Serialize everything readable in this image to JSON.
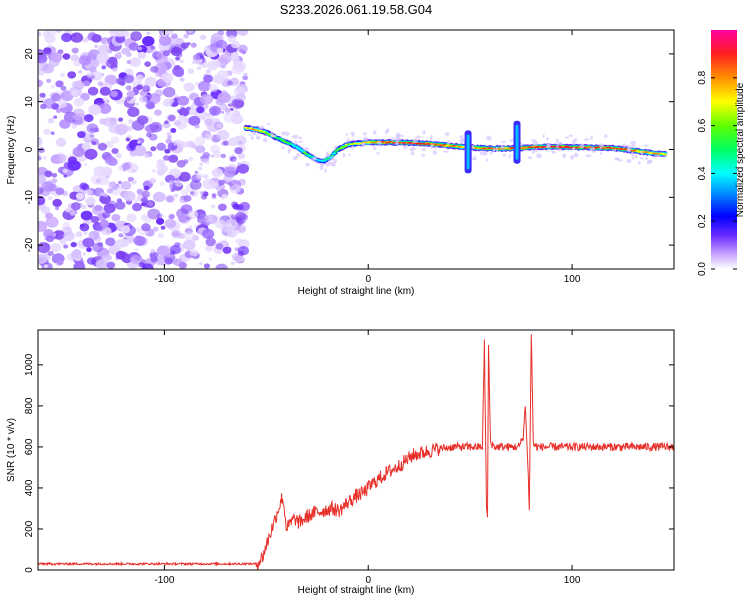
{
  "title": "S233.2026.061.19.58.G04",
  "chart_data": [
    {
      "type": "heatmap",
      "title": "S233.2026.061.19.58.G04",
      "xlabel": "Height of straight line (km)",
      "ylabel": "Frequency (Hz)",
      "xlim": [
        -162,
        150
      ],
      "ylim": [
        -25,
        25
      ],
      "xticks": [
        -100,
        0,
        100
      ],
      "xtick_labels": [
        "-100",
        "0",
        "100"
      ],
      "yticks": [
        -20,
        -10,
        0,
        10,
        20
      ],
      "ytick_labels": [
        "-20",
        "-10",
        "0",
        "10",
        "20"
      ],
      "noise_region_x": [
        -162,
        -60
      ],
      "signal_start_x": -60,
      "signal_track": {
        "x": [
          -60,
          -55,
          -50,
          -45,
          -40,
          -35,
          -30,
          -25,
          -22,
          -18,
          -15,
          -10,
          -5,
          0,
          10,
          20,
          30,
          40,
          48,
          55,
          60,
          66,
          72,
          76,
          80,
          90,
          100,
          110,
          120,
          130,
          140,
          146
        ],
        "freq": [
          4.5,
          4.2,
          3.5,
          2.5,
          1.5,
          0.5,
          -1.0,
          -2.2,
          -2.5,
          -1.5,
          0,
          1.0,
          1.3,
          1.5,
          1.5,
          1.4,
          1.2,
          0.8,
          0.5,
          0.3,
          0.2,
          0.2,
          0.3,
          0.3,
          0.5,
          0.6,
          0.5,
          0.4,
          0.3,
          -0.2,
          -0.8,
          -1.0
        ],
        "amplitude": [
          0.75,
          0.8,
          0.7,
          0.6,
          0.55,
          0.5,
          0.55,
          0.45,
          0.5,
          0.5,
          0.6,
          0.7,
          0.75,
          0.8,
          0.9,
          0.95,
          0.9,
          0.85,
          0.8,
          0.85,
          0.9,
          0.8,
          0.9,
          0.85,
          0.9,
          0.95,
          0.95,
          0.9,
          0.9,
          0.85,
          0.8,
          0.8
        ]
      },
      "vertical_streaks": [
        {
          "x": 49,
          "fmin": -5,
          "fmax": 4
        },
        {
          "x": 73,
          "fmin": -3,
          "fmax": 6
        }
      ],
      "colorbar": {
        "label": "Normalized spectral amplitude",
        "range": [
          0,
          1
        ],
        "ticks": [
          0,
          0.2,
          0.4,
          0.6,
          0.8
        ],
        "tick_labels": [
          "0.0",
          "0.2",
          "0.4",
          "0.6",
          "0.8"
        ]
      }
    },
    {
      "type": "line",
      "xlabel": "Height of straight line (km)",
      "ylabel": "SNR (10 * v/v)",
      "xlim": [
        -162,
        150
      ],
      "ylim": [
        0,
        1170
      ],
      "xticks": [
        -100,
        0,
        100
      ],
      "xtick_labels": [
        "-100",
        "0",
        "100"
      ],
      "yticks": [
        0,
        200,
        400,
        600,
        800,
        1000
      ],
      "ytick_labels": [
        "0",
        "200",
        "400",
        "600",
        "800",
        "1000"
      ],
      "color": "#e8302a",
      "series": [
        {
          "name": "SNR",
          "x": [
            -162,
            -140,
            -120,
            -100,
            -80,
            -60,
            -55,
            -52,
            -50,
            -48,
            -46,
            -44,
            -42,
            -40,
            -38,
            -36,
            -34,
            -30,
            -26,
            -22,
            -18,
            -14,
            -10,
            -6,
            -2,
            2,
            6,
            10,
            14,
            18,
            22,
            26,
            30,
            34,
            38,
            42,
            46,
            50,
            54,
            56,
            57,
            58,
            58.5,
            59,
            60,
            62,
            66,
            70,
            74,
            76,
            77,
            78,
            79,
            80,
            81,
            82,
            84,
            90,
            100,
            110,
            120,
            130,
            140,
            150
          ],
          "y": [
            30,
            30,
            30,
            30,
            30,
            30,
            30,
            60,
            120,
            180,
            240,
            300,
            360,
            200,
            230,
            250,
            230,
            260,
            280,
            290,
            300,
            290,
            330,
            360,
            380,
            420,
            450,
            480,
            500,
            530,
            560,
            570,
            580,
            590,
            595,
            600,
            600,
            600,
            600,
            600,
            1110,
            300,
            250,
            1100,
            620,
            600,
            600,
            600,
            600,
            650,
            800,
            600,
            300,
            1160,
            620,
            600,
            600,
            600,
            600,
            600,
            600,
            600,
            600,
            600
          ]
        }
      ]
    }
  ]
}
